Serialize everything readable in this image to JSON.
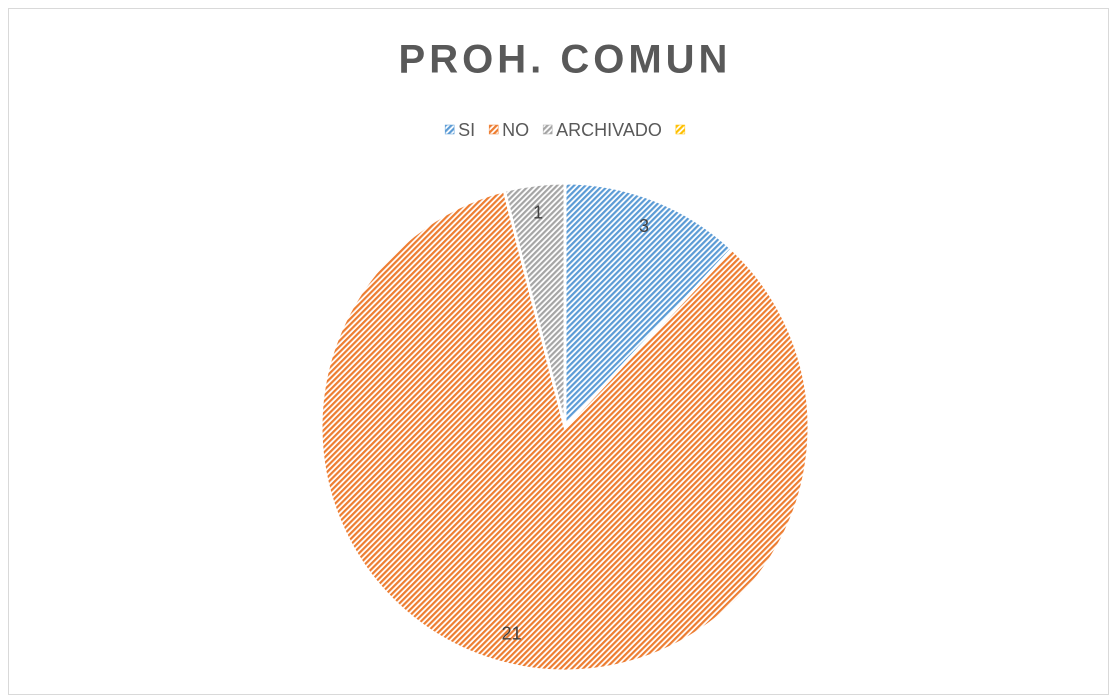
{
  "chart_data": {
    "type": "pie",
    "title": "PROH. COMUN",
    "categories": [
      "SI",
      "NO",
      "ARCHIVADO",
      null
    ],
    "values": [
      3,
      21,
      1,
      0
    ],
    "colors": [
      "#5b9bd5",
      "#ed7d31",
      "#a5a5a5",
      "#ffc000"
    ],
    "legend": "top"
  }
}
